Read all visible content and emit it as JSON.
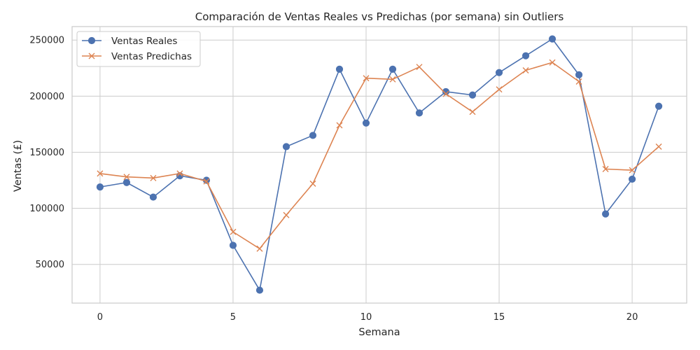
{
  "chart_data": {
    "type": "line",
    "title": "Comparación de Ventas Reales vs Predichas (por semana) sin Outliers",
    "xlabel": "Semana",
    "ylabel": "Ventas (£)",
    "x": [
      0,
      1,
      2,
      3,
      4,
      5,
      6,
      7,
      8,
      9,
      10,
      11,
      12,
      13,
      14,
      15,
      16,
      17,
      18,
      19,
      20,
      21
    ],
    "xlim": [
      -1.05,
      22.05
    ],
    "ylim": [
      15500,
      262000
    ],
    "xticks": [
      0,
      5,
      10,
      15,
      20
    ],
    "xtick_labels": [
      "0",
      "5",
      "10",
      "15",
      "20"
    ],
    "yticks": [
      50000,
      100000,
      150000,
      200000,
      250000
    ],
    "ytick_labels": [
      "50000",
      "100000",
      "150000",
      "200000",
      "250000"
    ],
    "grid": true,
    "legend_position": "top-left",
    "series": [
      {
        "name": "Ventas Reales",
        "color": "#4c72b0",
        "marker": "circle",
        "values": [
          119000,
          123000,
          110000,
          129000,
          125000,
          67000,
          27000,
          155000,
          165000,
          224000,
          176000,
          224000,
          185000,
          204000,
          201000,
          221000,
          236000,
          251000,
          219000,
          95000,
          126000,
          191000
        ]
      },
      {
        "name": "Ventas Predichas",
        "color": "#dd8452",
        "marker": "x",
        "values": [
          131000,
          128000,
          127000,
          131000,
          124000,
          79000,
          64000,
          94000,
          122000,
          174000,
          216000,
          215000,
          226000,
          202000,
          186000,
          206000,
          223000,
          230000,
          213000,
          135000,
          134000,
          155000
        ]
      }
    ]
  }
}
